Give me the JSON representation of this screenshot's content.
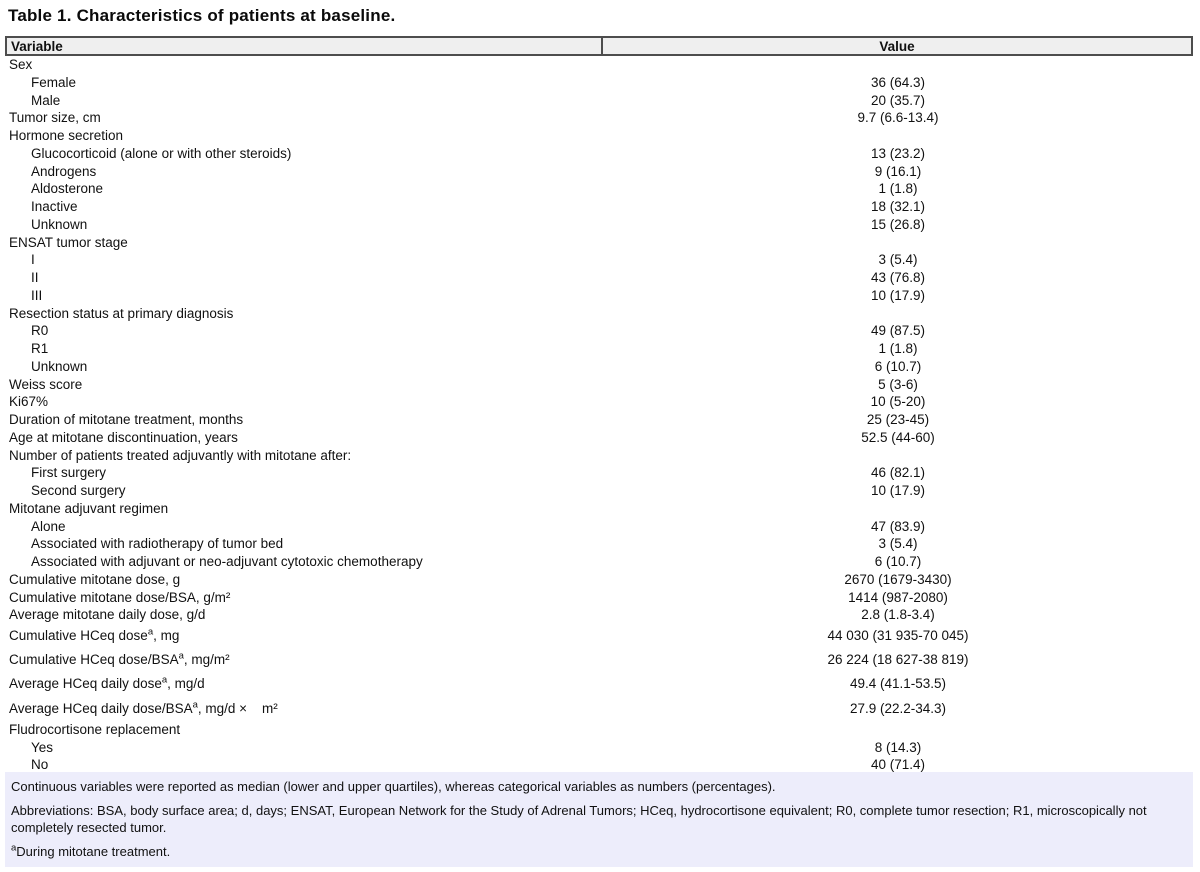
{
  "title": "Table 1. Characteristics of patients at baseline.",
  "columns": {
    "variable": "Variable",
    "value": "Value"
  },
  "rows": [
    {
      "label": "Sex",
      "indent": 0,
      "value": ""
    },
    {
      "label": "Female",
      "indent": 1,
      "value": "36 (64.3)"
    },
    {
      "label": "Male",
      "indent": 1,
      "value": "20 (35.7)"
    },
    {
      "label": "Tumor size, cm",
      "indent": 0,
      "value": "9.7 (6.6-13.4)"
    },
    {
      "label": "Hormone secretion",
      "indent": 0,
      "value": ""
    },
    {
      "label": "Glucocorticoid (alone or with other steroids)",
      "indent": 1,
      "value": "13 (23.2)"
    },
    {
      "label": "Androgens",
      "indent": 1,
      "value": "9 (16.1)"
    },
    {
      "label": "Aldosterone",
      "indent": 1,
      "value": "1 (1.8)"
    },
    {
      "label": "Inactive",
      "indent": 1,
      "value": "18 (32.1)"
    },
    {
      "label": "Unknown",
      "indent": 1,
      "value": "15 (26.8)"
    },
    {
      "label": "ENSAT tumor stage",
      "indent": 0,
      "value": ""
    },
    {
      "label": "I",
      "indent": 1,
      "value": "3 (5.4)"
    },
    {
      "label": "II",
      "indent": 1,
      "value": "43 (76.8)"
    },
    {
      "label": "III",
      "indent": 1,
      "value": "10 (17.9)"
    },
    {
      "label": "Resection status at primary diagnosis",
      "indent": 0,
      "value": ""
    },
    {
      "label": "R0",
      "indent": 1,
      "value": "49 (87.5)"
    },
    {
      "label": "R1",
      "indent": 1,
      "value": "1 (1.8)"
    },
    {
      "label": "Unknown",
      "indent": 1,
      "value": "6 (10.7)"
    },
    {
      "label": "Weiss score",
      "indent": 0,
      "value": "5 (3-6)"
    },
    {
      "label": "Ki67%",
      "indent": 0,
      "value": "10 (5-20)"
    },
    {
      "label": "Duration of mitotane treatment, months",
      "indent": 0,
      "value": "25 (23-45)"
    },
    {
      "label": "Age at mitotane discontinuation, years",
      "indent": 0,
      "value": "52.5 (44-60)"
    },
    {
      "label": "Number of patients treated adjuvantly with mitotane after:",
      "indent": 0,
      "value": ""
    },
    {
      "label": "First surgery",
      "indent": 1,
      "value": "46 (82.1)"
    },
    {
      "label": "Second surgery",
      "indent": 1,
      "value": "10 (17.9)"
    },
    {
      "label": "Mitotane adjuvant regimen",
      "indent": 0,
      "value": ""
    },
    {
      "label": "Alone",
      "indent": 1,
      "value": "47 (83.9)"
    },
    {
      "label": "Associated with radiotherapy of tumor bed",
      "indent": 1,
      "value": "3 (5.4)"
    },
    {
      "label": "Associated with adjuvant or neo-adjuvant cytotoxic chemotherapy",
      "indent": 1,
      "value": "6 (10.7)"
    },
    {
      "label": "Cumulative mitotane dose, g",
      "indent": 0,
      "value": "2670 (1679-3430)"
    },
    {
      "label": "Cumulative mitotane dose/BSA, g/m²",
      "indent": 0,
      "value": "1414 (987-2080)"
    },
    {
      "label": "Average mitotane daily dose, g/d",
      "indent": 0,
      "value": "2.8 (1.8-3.4)"
    },
    {
      "label": "Cumulative HCeq dose",
      "sup": "a",
      "post": ", mg",
      "indent": 0,
      "value": "44 030 (31 935-70 045)"
    },
    {
      "label": "Cumulative HCeq dose/BSA",
      "sup": "a",
      "post": ", mg/m²",
      "indent": 0,
      "value": "26 224 (18 627-38 819)"
    },
    {
      "label": "Average HCeq daily dose",
      "sup": "a",
      "post": ", mg/d",
      "indent": 0,
      "value": "49.4 (41.1-53.5)"
    },
    {
      "label": "Average HCeq daily dose/BSA",
      "sup": "a",
      "post": ", mg/d ×    m²",
      "indent": 0,
      "value": "27.9 (22.2-34.3)"
    },
    {
      "label": "Fludrocortisone replacement",
      "indent": 0,
      "value": ""
    },
    {
      "label": "Yes",
      "indent": 1,
      "value": "8 (14.3)"
    },
    {
      "label": "No",
      "indent": 1,
      "value": "40 (71.4)"
    }
  ],
  "footnotes": {
    "line1": "Continuous variables were reported as median (lower and upper quartiles), whereas categorical variables as numbers (percentages).",
    "line2": "Abbreviations: BSA, body surface area; d, days; ENSAT, European Network for the Study of Adrenal Tumors; HCeq, hydrocortisone equivalent; R0, complete tumor resection; R1, microscopically not completely resected tumor.",
    "line3_sup": "a",
    "line3": "During mitotane treatment."
  },
  "colors": {
    "header_bg": "#efefef",
    "header_border": "#4d4d4d",
    "footnote_bg": "#ededfb",
    "text": "#111111"
  }
}
